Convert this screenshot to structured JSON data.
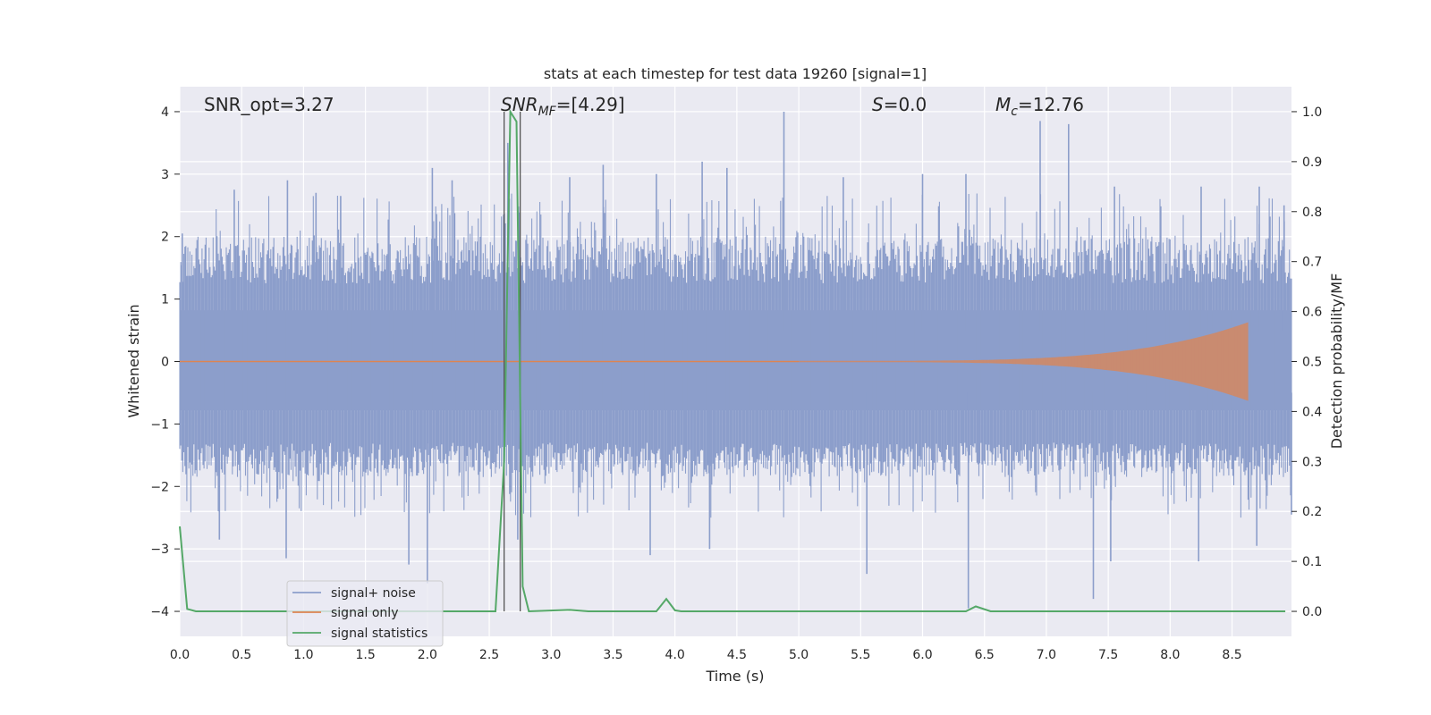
{
  "chart_data": {
    "type": "line",
    "title": "stats at each timestep for test data 19260 [signal=1]",
    "xlabel": "Time (s)",
    "ylabel_left": "Whitened strain",
    "ylabel_right": "Detection probability/MF",
    "xlim": [
      0.0,
      8.98
    ],
    "ylim_left": [
      -4.4,
      4.4
    ],
    "ylim_right": [
      -0.05,
      1.05
    ],
    "xticks": [
      "0.0",
      "0.5",
      "1.0",
      "1.5",
      "2.0",
      "2.5",
      "3.0",
      "3.5",
      "4.0",
      "4.5",
      "5.0",
      "5.5",
      "6.0",
      "6.5",
      "7.0",
      "7.5",
      "8.0",
      "8.5"
    ],
    "yticks_left": [
      "4",
      "3",
      "2",
      "1",
      "0",
      "−1",
      "−2",
      "−3",
      "−4"
    ],
    "yticks_right": [
      "1.0",
      "0.9",
      "0.8",
      "0.7",
      "0.6",
      "0.5",
      "0.4",
      "0.3",
      "0.2",
      "0.1",
      "0.0"
    ],
    "grid": true,
    "legend_position": "lower-left",
    "annotations": {
      "snr_opt": "SNR_opt=3.27",
      "snr_mf_main": "SNR",
      "snr_mf_sub": "MF",
      "snr_mf_value": "=[4.29]",
      "s_main": "S",
      "s_value": "=0.0",
      "mc_main": "M",
      "mc_sub": "c",
      "mc_value": "=12.76"
    },
    "vertical_lines_x": [
      2.62,
      2.75
    ],
    "noise_band": {
      "spike_peaks_upper": [
        [
          0.02,
          2.05
        ],
        [
          0.44,
          2.75
        ],
        [
          0.87,
          2.9
        ],
        [
          1.1,
          2.7
        ],
        [
          1.3,
          2.65
        ],
        [
          2.04,
          3.1
        ],
        [
          2.2,
          2.9
        ],
        [
          2.65,
          3.5
        ],
        [
          3.15,
          2.95
        ],
        [
          3.42,
          3.15
        ],
        [
          3.85,
          3.0
        ],
        [
          4.22,
          3.2
        ],
        [
          4.42,
          3.1
        ],
        [
          4.88,
          4.0
        ],
        [
          5.36,
          2.95
        ],
        [
          6.0,
          3.0
        ],
        [
          6.35,
          3.0
        ],
        [
          6.95,
          3.85
        ],
        [
          7.18,
          3.8
        ],
        [
          7.55,
          2.8
        ],
        [
          8.25,
          2.8
        ],
        [
          8.72,
          2.8
        ],
        [
          8.92,
          2.5
        ]
      ],
      "spike_peaks_lower": [
        [
          0.32,
          -2.85
        ],
        [
          0.86,
          -3.15
        ],
        [
          1.85,
          -3.25
        ],
        [
          2.0,
          -3.55
        ],
        [
          2.73,
          -2.85
        ],
        [
          3.8,
          -3.1
        ],
        [
          4.28,
          -3.0
        ],
        [
          5.55,
          -3.4
        ],
        [
          6.37,
          -3.95
        ],
        [
          7.38,
          -3.8
        ],
        [
          7.52,
          -3.2
        ],
        [
          8.23,
          -3.2
        ],
        [
          8.7,
          -2.95
        ],
        [
          8.98,
          -2.45
        ]
      ]
    },
    "series": [
      {
        "name": "signal+ noise",
        "color": "#8c9ecb"
      },
      {
        "name": "signal only",
        "color": "#dd8452",
        "chirp_start_x": 5.0,
        "chirp_end_x": 8.63,
        "chirp_end_amplitude": 0.62
      },
      {
        "name": "signal statistics",
        "color": "#55a868",
        "points": [
          [
            0.0,
            0.17
          ],
          [
            0.06,
            0.005
          ],
          [
            0.13,
            0.0
          ],
          [
            1.0,
            0.0
          ],
          [
            2.0,
            0.0
          ],
          [
            2.55,
            0.0
          ],
          [
            2.62,
            0.3
          ],
          [
            2.67,
            1.0
          ],
          [
            2.72,
            0.98
          ],
          [
            2.77,
            0.05
          ],
          [
            2.82,
            0.0
          ],
          [
            3.15,
            0.003
          ],
          [
            3.3,
            0.0
          ],
          [
            3.85,
            0.0
          ],
          [
            3.93,
            0.025
          ],
          [
            4.0,
            0.002
          ],
          [
            4.05,
            0.0
          ],
          [
            6.35,
            0.0
          ],
          [
            6.43,
            0.01
          ],
          [
            6.55,
            0.0
          ],
          [
            8.93,
            0.0
          ]
        ]
      }
    ]
  }
}
